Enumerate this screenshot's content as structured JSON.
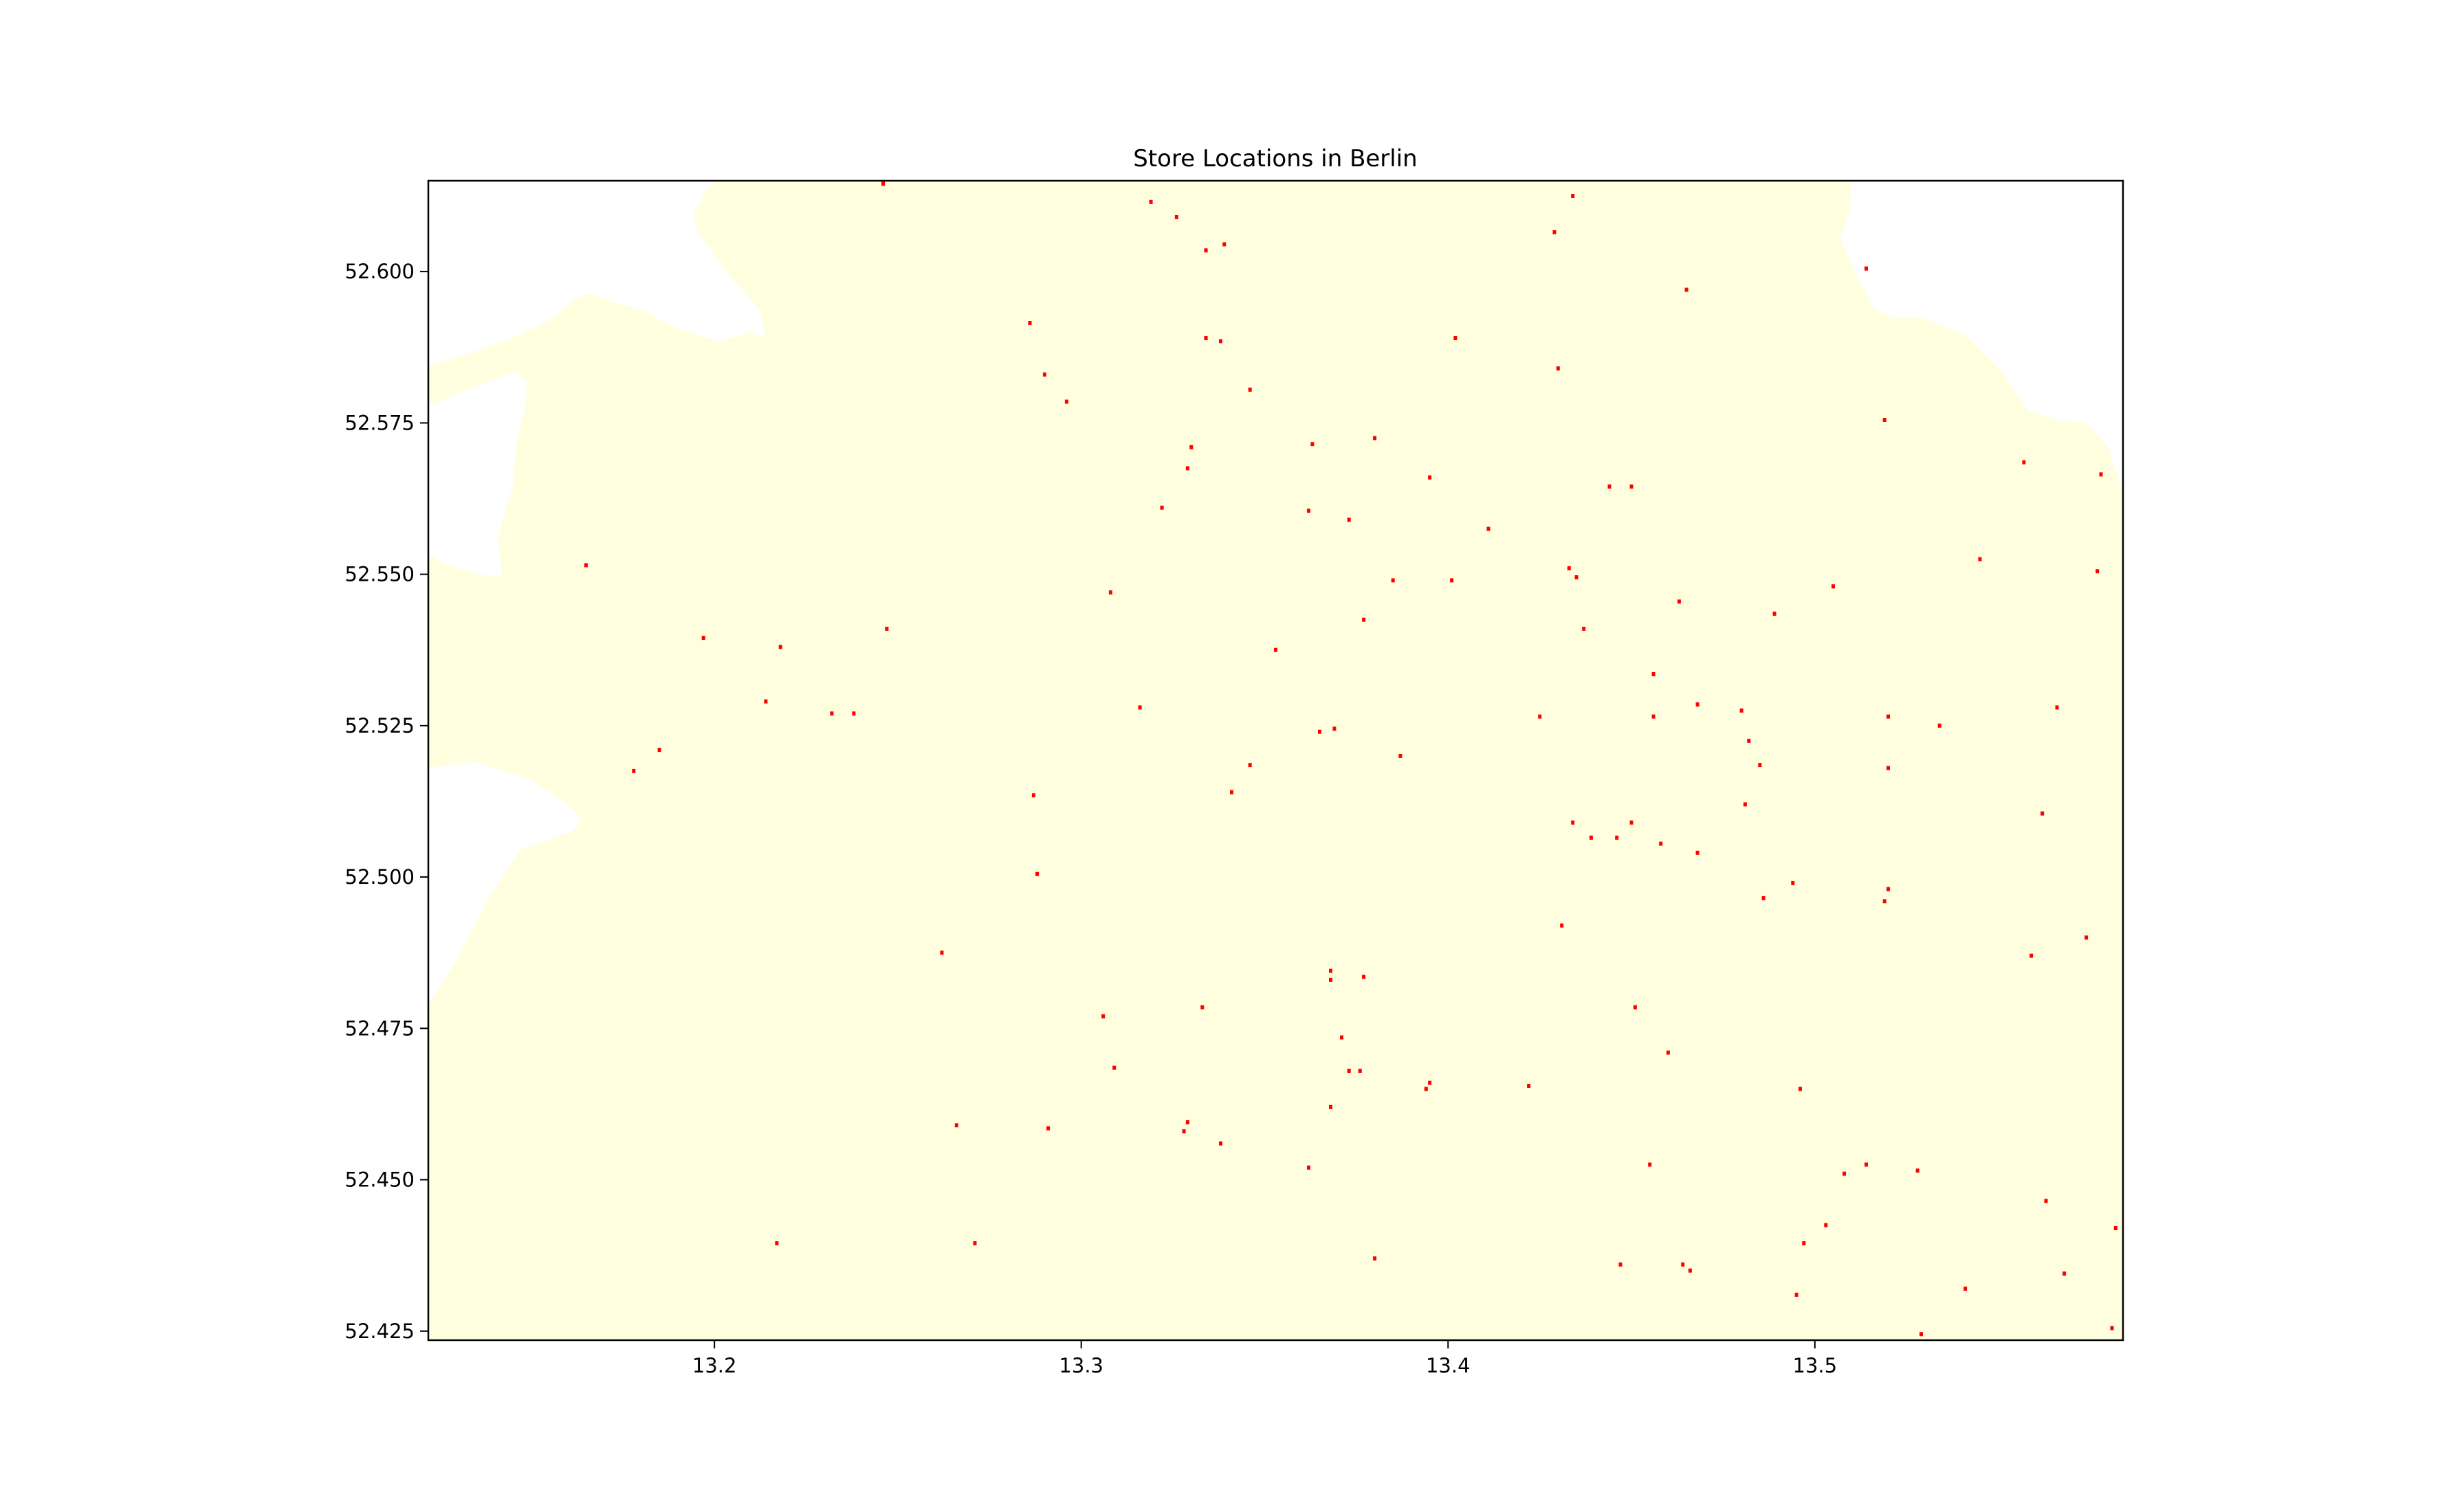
{
  "chart_data": {
    "type": "scatter",
    "title": "Store Locations in Berlin",
    "xlabel": "",
    "ylabel": "",
    "xlim": [
      13.122,
      13.584
    ],
    "ylim": [
      52.4235,
      52.615
    ],
    "xticks": [
      13.2,
      13.3,
      13.4,
      13.5
    ],
    "xtick_labels": [
      "13.2",
      "13.3",
      "13.4",
      "13.5"
    ],
    "yticks": [
      52.425,
      52.45,
      52.475,
      52.5,
      52.525,
      52.55,
      52.575,
      52.6
    ],
    "ytick_labels": [
      "52.425",
      "52.450",
      "52.475",
      "52.500",
      "52.525",
      "52.550",
      "52.575",
      "52.600"
    ],
    "grid": false,
    "legend": "none",
    "colors": {
      "land": "#ffffe0",
      "stores": "#ff0000",
      "background": "#ffffff",
      "axes": "#000000"
    },
    "land_boundary": [
      [
        13.122,
        52.5845
      ],
      [
        13.128,
        52.5855
      ],
      [
        13.138,
        52.5875
      ],
      [
        13.147,
        52.5895
      ],
      [
        13.155,
        52.592
      ],
      [
        13.161,
        52.595
      ],
      [
        13.166,
        52.5965
      ],
      [
        13.172,
        52.595
      ],
      [
        13.181,
        52.5935
      ],
      [
        13.19,
        52.5905
      ],
      [
        13.196,
        52.5895
      ],
      [
        13.201,
        52.5885
      ],
      [
        13.207,
        52.5895
      ],
      [
        13.21,
        52.59
      ],
      [
        13.214,
        52.589
      ],
      [
        13.2125,
        52.5935
      ],
      [
        13.204,
        52.5995
      ],
      [
        13.199,
        52.6035
      ],
      [
        13.195,
        52.607
      ],
      [
        13.1945,
        52.61
      ],
      [
        13.197,
        52.6125
      ],
      [
        13.2,
        52.615
      ],
      [
        13.2,
        52.615
      ],
      [
        13.51,
        52.615
      ],
      [
        13.5095,
        52.61
      ],
      [
        13.507,
        52.6055
      ],
      [
        13.509,
        52.6025
      ],
      [
        13.513,
        52.5975
      ],
      [
        13.516,
        52.594
      ],
      [
        13.521,
        52.5925
      ],
      [
        13.529,
        52.5925
      ],
      [
        13.541,
        52.5895
      ],
      [
        13.551,
        52.5835
      ],
      [
        13.558,
        52.577
      ],
      [
        13.566,
        52.5755
      ],
      [
        13.574,
        52.575
      ],
      [
        13.58,
        52.571
      ],
      [
        13.584,
        52.5635
      ],
      [
        13.584,
        52.4235
      ],
      [
        13.122,
        52.4235
      ],
      [
        13.122,
        52.479
      ],
      [
        13.129,
        52.4855
      ],
      [
        13.138,
        52.496
      ],
      [
        13.147,
        52.5045
      ],
      [
        13.161,
        52.5075
      ],
      [
        13.164,
        52.5095
      ],
      [
        13.16,
        52.512
      ],
      [
        13.15,
        52.516
      ],
      [
        13.135,
        52.519
      ],
      [
        13.128,
        52.5185
      ],
      [
        13.122,
        52.518
      ],
      [
        13.122,
        52.5535
      ],
      [
        13.127,
        52.5515
      ],
      [
        13.136,
        52.55
      ],
      [
        13.142,
        52.5495
      ],
      [
        13.141,
        52.556
      ],
      [
        13.142,
        52.5585
      ],
      [
        13.145,
        52.5645
      ],
      [
        13.146,
        52.5715
      ],
      [
        13.148,
        52.5765
      ],
      [
        13.149,
        52.5815
      ],
      [
        13.146,
        52.5835
      ],
      [
        13.137,
        52.5815
      ],
      [
        13.128,
        52.5795
      ],
      [
        13.126,
        52.5785
      ],
      [
        13.122,
        52.578
      ]
    ],
    "stores": [
      [
        13.246,
        52.6145
      ],
      [
        13.319,
        52.6115
      ],
      [
        13.326,
        52.609
      ],
      [
        13.334,
        52.6035
      ],
      [
        13.339,
        52.6045
      ],
      [
        13.429,
        52.6065
      ],
      [
        13.434,
        52.6125
      ],
      [
        13.514,
        52.6005
      ],
      [
        13.465,
        52.597
      ],
      [
        13.286,
        52.5915
      ],
      [
        13.29,
        52.583
      ],
      [
        13.296,
        52.5785
      ],
      [
        13.334,
        52.589
      ],
      [
        13.338,
        52.5885
      ],
      [
        13.346,
        52.5805
      ],
      [
        13.402,
        52.589
      ],
      [
        13.43,
        52.584
      ],
      [
        13.33,
        52.571
      ],
      [
        13.329,
        52.5675
      ],
      [
        13.363,
        52.5715
      ],
      [
        13.38,
        52.5725
      ],
      [
        13.395,
        52.566
      ],
      [
        13.322,
        52.561
      ],
      [
        13.362,
        52.5605
      ],
      [
        13.373,
        52.559
      ],
      [
        13.411,
        52.5575
      ],
      [
        13.444,
        52.5645
      ],
      [
        13.45,
        52.5645
      ],
      [
        13.519,
        52.5755
      ],
      [
        13.557,
        52.5685
      ],
      [
        13.578,
        52.5665
      ],
      [
        13.165,
        52.5515
      ],
      [
        13.308,
        52.547
      ],
      [
        13.385,
        52.549
      ],
      [
        13.401,
        52.549
      ],
      [
        13.433,
        52.551
      ],
      [
        13.435,
        52.5495
      ],
      [
        13.463,
        52.5455
      ],
      [
        13.489,
        52.5435
      ],
      [
        13.505,
        52.548
      ],
      [
        13.545,
        52.5525
      ],
      [
        13.577,
        52.5505
      ],
      [
        13.197,
        52.5395
      ],
      [
        13.218,
        52.538
      ],
      [
        13.247,
        52.541
      ],
      [
        13.353,
        52.5375
      ],
      [
        13.377,
        52.5425
      ],
      [
        13.437,
        52.541
      ],
      [
        13.456,
        52.5335
      ],
      [
        13.468,
        52.5285
      ],
      [
        13.214,
        52.529
      ],
      [
        13.232,
        52.527
      ],
      [
        13.238,
        52.527
      ],
      [
        13.316,
        52.528
      ],
      [
        13.365,
        52.524
      ],
      [
        13.369,
        52.5245
      ],
      [
        13.425,
        52.5265
      ],
      [
        13.456,
        52.5265
      ],
      [
        13.48,
        52.5275
      ],
      [
        13.482,
        52.5225
      ],
      [
        13.52,
        52.5265
      ],
      [
        13.534,
        52.525
      ],
      [
        13.566,
        52.528
      ],
      [
        13.185,
        52.521
      ],
      [
        13.178,
        52.5175
      ],
      [
        13.287,
        52.5135
      ],
      [
        13.341,
        52.514
      ],
      [
        13.346,
        52.5185
      ],
      [
        13.387,
        52.52
      ],
      [
        13.485,
        52.5185
      ],
      [
        13.52,
        52.518
      ],
      [
        13.481,
        52.512
      ],
      [
        13.434,
        52.509
      ],
      [
        13.439,
        52.5065
      ],
      [
        13.446,
        52.5065
      ],
      [
        13.45,
        52.509
      ],
      [
        13.458,
        52.5055
      ],
      [
        13.468,
        52.504
      ],
      [
        13.562,
        52.5105
      ],
      [
        13.288,
        52.5005
      ],
      [
        13.494,
        52.499
      ],
      [
        13.52,
        52.498
      ],
      [
        13.519,
        52.496
      ],
      [
        13.486,
        52.4965
      ],
      [
        13.431,
        52.492
      ],
      [
        13.574,
        52.49
      ],
      [
        13.262,
        52.4875
      ],
      [
        13.368,
        52.4845
      ],
      [
        13.368,
        52.483
      ],
      [
        13.377,
        52.4835
      ],
      [
        13.559,
        52.487
      ],
      [
        13.333,
        52.4785
      ],
      [
        13.306,
        52.477
      ],
      [
        13.371,
        52.4735
      ],
      [
        13.451,
        52.4785
      ],
      [
        13.46,
        52.471
      ],
      [
        13.309,
        52.4685
      ],
      [
        13.373,
        52.468
      ],
      [
        13.376,
        52.468
      ],
      [
        13.368,
        52.462
      ],
      [
        13.394,
        52.465
      ],
      [
        13.395,
        52.466
      ],
      [
        13.422,
        52.4655
      ],
      [
        13.496,
        52.465
      ],
      [
        13.266,
        52.459
      ],
      [
        13.291,
        52.4585
      ],
      [
        13.328,
        52.458
      ],
      [
        13.329,
        52.4595
      ],
      [
        13.338,
        52.456
      ],
      [
        13.362,
        52.452
      ],
      [
        13.455,
        52.4525
      ],
      [
        13.508,
        52.451
      ],
      [
        13.514,
        52.4525
      ],
      [
        13.528,
        52.4515
      ],
      [
        13.563,
        52.4465
      ],
      [
        13.582,
        52.442
      ],
      [
        13.217,
        52.4395
      ],
      [
        13.271,
        52.4395
      ],
      [
        13.38,
        52.437
      ],
      [
        13.447,
        52.436
      ],
      [
        13.464,
        52.436
      ],
      [
        13.466,
        52.435
      ],
      [
        13.497,
        52.4395
      ],
      [
        13.503,
        52.4425
      ],
      [
        13.541,
        52.432
      ],
      [
        13.495,
        52.431
      ],
      [
        13.568,
        52.4345
      ],
      [
        13.581,
        52.4255
      ],
      [
        13.529,
        52.4245
      ]
    ]
  }
}
